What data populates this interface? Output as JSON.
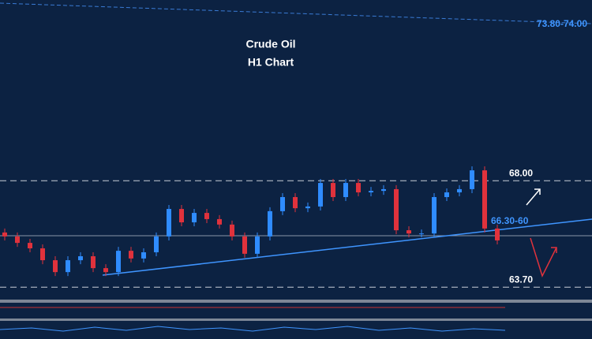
{
  "chart_data": {
    "type": "candlestick",
    "title": "Crude Oil",
    "subtitle": "H1 Chart",
    "annotations": [
      "73.80-74.00",
      "66.30-60"
    ],
    "levels": [
      {
        "value": 68,
        "label": "68.00"
      },
      {
        "value": 63.7,
        "label": "63.70"
      }
    ],
    "ylim": [
      63.2,
      75.3
    ],
    "up_color": "#2f8cff",
    "down_color": "#e0323c",
    "open": [
      65.91,
      65.75,
      65.49,
      65.27,
      64.79,
      64.31,
      64.79,
      64.95,
      64.47,
      64.31,
      65.17,
      64.86,
      65.11,
      65.75,
      66.86,
      66.32,
      66.7,
      66.45,
      66.23,
      65.75,
      65.05,
      65.75,
      66.77,
      67.34,
      66.89,
      66.96,
      67.91,
      67.34,
      67.91,
      67.53,
      67.59,
      67.66,
      66.0,
      65.87,
      65.87,
      67.34,
      67.53,
      67.66,
      68.42,
      66.07
    ],
    "high": [
      66.07,
      65.91,
      65.65,
      65.43,
      64.95,
      64.95,
      65.11,
      65.11,
      64.63,
      65.33,
      65.33,
      65.27,
      65.91,
      67.02,
      67.02,
      66.86,
      66.86,
      66.61,
      66.39,
      65.91,
      65.91,
      66.93,
      67.5,
      67.5,
      67.12,
      68.07,
      68.07,
      68.07,
      68.07,
      67.75,
      67.82,
      67.82,
      66.16,
      66.03,
      67.5,
      67.69,
      67.82,
      68.58,
      68.58,
      66.23
    ],
    "low": [
      65.59,
      65.33,
      65.11,
      64.63,
      64.15,
      64.15,
      64.63,
      64.31,
      64.15,
      64.15,
      64.7,
      64.7,
      64.95,
      65.59,
      66.16,
      66.16,
      66.29,
      66.07,
      65.59,
      64.89,
      64.89,
      65.59,
      66.61,
      66.73,
      66.73,
      66.8,
      67.18,
      67.18,
      67.37,
      67.37,
      67.43,
      65.84,
      65.71,
      65.71,
      65.71,
      67.18,
      67.37,
      67.5,
      65.91,
      65.43
    ],
    "close": [
      65.75,
      65.49,
      65.27,
      64.79,
      64.31,
      64.79,
      64.95,
      64.47,
      64.31,
      65.17,
      64.86,
      65.11,
      65.75,
      66.86,
      66.32,
      66.7,
      66.45,
      66.23,
      65.75,
      65.05,
      65.75,
      66.77,
      67.34,
      66.89,
      66.96,
      67.91,
      67.34,
      67.91,
      67.53,
      67.59,
      67.66,
      66.0,
      65.87,
      65.87,
      67.34,
      67.53,
      67.66,
      68.42,
      66.07,
      65.59
    ]
  }
}
